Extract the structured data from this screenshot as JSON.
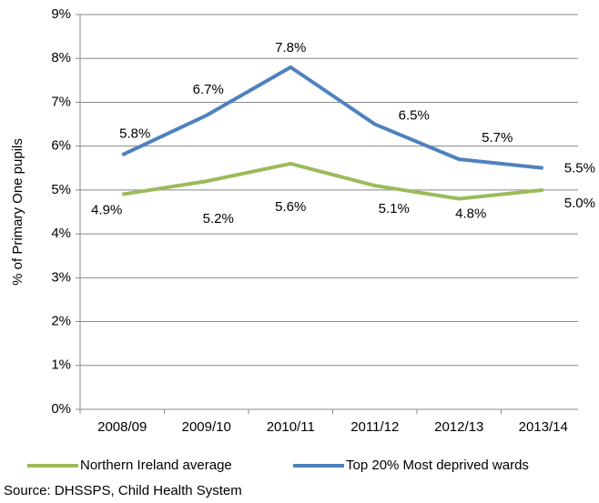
{
  "chart_data": {
    "type": "line",
    "y_label": "% of Primary One pupils",
    "categories": [
      "2008/09",
      "2009/10",
      "2010/11",
      "2011/12",
      "2012/13",
      "2013/14"
    ],
    "series": [
      {
        "name": "Northern Ireland average",
        "color": "#9bbb59",
        "values": [
          4.9,
          5.2,
          5.6,
          5.1,
          4.8,
          5.0
        ],
        "value_labels": [
          "4.9%",
          "5.2%",
          "5.6%",
          "5.1%",
          "4.8%",
          "5.0%"
        ]
      },
      {
        "name": "Top 20% Most deprived wards",
        "color": "#4f81bd",
        "values": [
          5.8,
          6.7,
          7.8,
          6.5,
          5.7,
          5.5
        ],
        "value_labels": [
          "5.8%",
          "6.7%",
          "7.8%",
          "6.5%",
          "5.7%",
          "5.5%"
        ]
      }
    ],
    "ylim": [
      0,
      9
    ],
    "yticks": [
      {
        "value": 0,
        "label": "0%"
      },
      {
        "value": 1,
        "label": "1%"
      },
      {
        "value": 2,
        "label": "2%"
      },
      {
        "value": 3,
        "label": "3%"
      },
      {
        "value": 4,
        "label": "4%"
      },
      {
        "value": 5,
        "label": "5%"
      },
      {
        "value": 6,
        "label": "6%"
      },
      {
        "value": 7,
        "label": "7%"
      },
      {
        "value": 8,
        "label": "8%"
      },
      {
        "value": 9,
        "label": "9%"
      }
    ],
    "grid": true,
    "legend": "bottom",
    "source": "Source: DHSSPS, Child Health System"
  }
}
